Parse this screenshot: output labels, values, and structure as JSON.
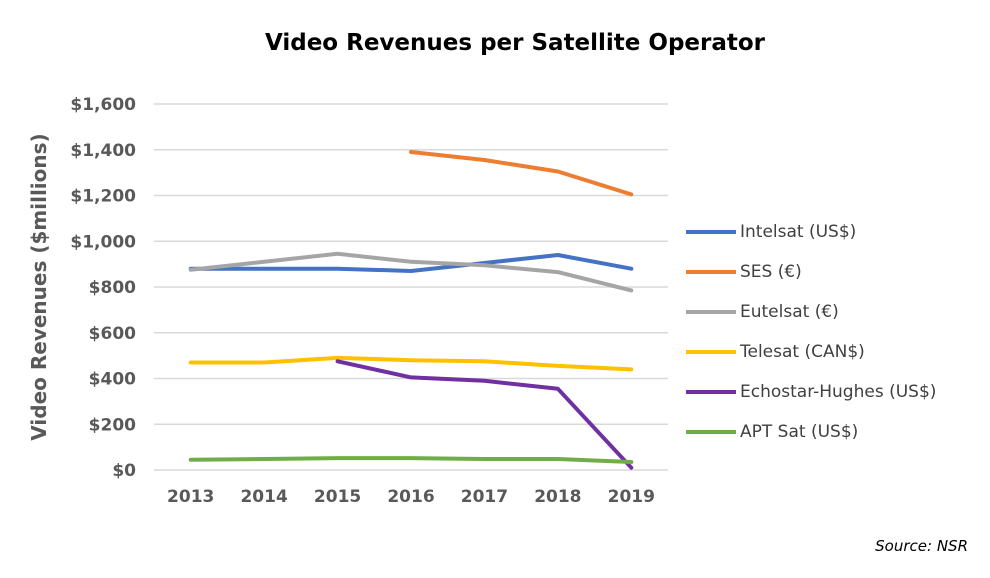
{
  "chart_data": {
    "type": "line",
    "title": "Video Revenues per Satellite Operator",
    "ylabel": "Video Revenues ($millions)",
    "xlabel": "",
    "x": [
      "2013",
      "2014",
      "2015",
      "2016",
      "2017",
      "2018",
      "2019"
    ],
    "ylim": [
      0,
      1600
    ],
    "yticks": [
      0,
      200,
      400,
      600,
      800,
      1000,
      1200,
      1400,
      1600
    ],
    "ytick_labels": [
      "$0",
      "$200",
      "$400",
      "$600",
      "$800",
      "$1,000",
      "$1,200",
      "$1,400",
      "$1,600"
    ],
    "grid": true,
    "legend_position": "right",
    "series": [
      {
        "name": "Intelsat (US$)",
        "color": "#4472C4",
        "values": [
          880,
          880,
          880,
          870,
          905,
          940,
          880
        ]
      },
      {
        "name": "SES (€)",
        "color": "#ED7D31",
        "values": [
          null,
          null,
          null,
          1390,
          1355,
          1305,
          1205
        ]
      },
      {
        "name": "Eutelsat (€)",
        "color": "#A5A5A5",
        "values": [
          875,
          910,
          945,
          910,
          895,
          865,
          785
        ]
      },
      {
        "name": "Telesat (CAN$)",
        "color": "#FFC000",
        "values": [
          470,
          470,
          490,
          480,
          475,
          455,
          440
        ]
      },
      {
        "name": "Echostar-Hughes (US$)",
        "color": "#7030A0",
        "values": [
          null,
          null,
          475,
          405,
          390,
          355,
          10
        ]
      },
      {
        "name": "APT Sat (US$)",
        "color": "#70AD47",
        "values": [
          45,
          48,
          52,
          52,
          48,
          48,
          35
        ]
      }
    ]
  },
  "source_note": "Source: NSR"
}
